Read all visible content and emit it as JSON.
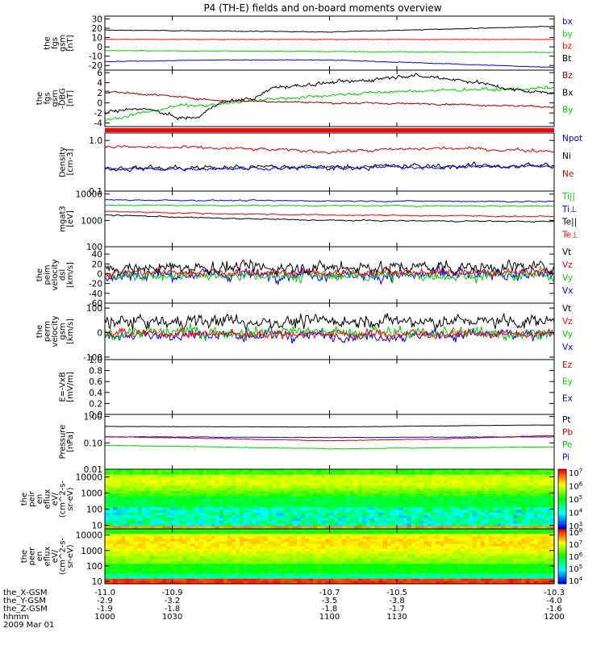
{
  "chart_data": {
    "type": "line",
    "title": "P4 (TH-E) fields and on-board moments overview",
    "panels": [
      {
        "id": "fgs",
        "ylabel": [
          "the",
          "fgs",
          "gsm",
          "[nT]"
        ],
        "ymin": -25,
        "ymax": 33,
        "scale": "linear",
        "ticks": [
          "30",
          "20",
          "10",
          "0",
          "-10",
          "-20"
        ],
        "tick_values": [
          30,
          20,
          10,
          0,
          -10,
          -20
        ],
        "series": [
          {
            "name": "Bt",
            "color": "#000000",
            "noise": 0.3,
            "knots": [
              [
                1000,
                18
              ],
              [
                1030,
                17
              ],
              [
                1100,
                16
              ],
              [
                1130,
                19
              ],
              [
                1200,
                22
              ]
            ]
          },
          {
            "name": "bz",
            "color": "#ff0000",
            "noise": 0.2,
            "knots": [
              [
                1000,
                8
              ],
              [
                1100,
                8
              ],
              [
                1200,
                8
              ]
            ]
          },
          {
            "name": "by",
            "color": "#00cc00",
            "noise": 0.3,
            "knots": [
              [
                1000,
                -4
              ],
              [
                1100,
                -5
              ],
              [
                1200,
                -6
              ]
            ]
          },
          {
            "name": "bx",
            "color": "#0000ff",
            "noise": 0.3,
            "knots": [
              [
                1000,
                -16
              ],
              [
                1030,
                -14
              ],
              [
                1100,
                -14
              ],
              [
                1130,
                -18
              ],
              [
                1200,
                -22
              ]
            ]
          }
        ]
      },
      {
        "id": "fgs-dbg",
        "ylabel": [
          "the",
          "fgs",
          "gsm",
          "-DBG",
          "[nT]"
        ],
        "ymin": -4.7,
        "ymax": 6.5,
        "scale": "linear",
        "ticks": [
          "6",
          "4",
          "2",
          "0",
          "-2",
          "-4"
        ],
        "tick_values": [
          6,
          4,
          2,
          0,
          -2,
          -4
        ],
        "series": [
          {
            "name": "By",
            "color": "#00cc00",
            "noise": 0.25,
            "knots": [
              [
                1000,
                -3.5
              ],
              [
                1010,
                -2
              ],
              [
                1020,
                -0.5
              ],
              [
                1030,
                -0.3
              ],
              [
                1040,
                0.5
              ],
              [
                1050,
                1
              ],
              [
                1100,
                1.5
              ],
              [
                1110,
                2
              ],
              [
                1130,
                2.5
              ],
              [
                1150,
                2.7
              ],
              [
                1200,
                3
              ]
            ]
          },
          {
            "name": "Bx",
            "color": "#000000",
            "noise": 0.3,
            "knots": [
              [
                1000,
                -2
              ],
              [
                1010,
                -1
              ],
              [
                1020,
                -3
              ],
              [
                1025,
                -3
              ],
              [
                1030,
                0
              ],
              [
                1040,
                1
              ],
              [
                1045,
                3
              ],
              [
                1100,
                4
              ],
              [
                1110,
                4.5
              ],
              [
                1120,
                5.5
              ],
              [
                1130,
                5
              ],
              [
                1140,
                4
              ],
              [
                1150,
                2.5
              ],
              [
                1200,
                2
              ]
            ]
          },
          {
            "name": "Bz",
            "color": "#990000",
            "noise": 0.15,
            "knots": [
              [
                1000,
                2.3
              ],
              [
                1015,
                1.5
              ],
              [
                1030,
                0.5
              ],
              [
                1050,
                0.2
              ],
              [
                1100,
                0
              ],
              [
                1130,
                -0.2
              ],
              [
                1200,
                -0.8
              ]
            ]
          }
        ]
      },
      {
        "id": "density",
        "ylabel": [
          "Density",
          "[cm-3]"
        ],
        "ymin": 0.1,
        "ymax": 1.4,
        "scale": "log",
        "ticks": [
          "1.0",
          "0.1"
        ],
        "tick_values": [
          1.0,
          0.1
        ],
        "series": [
          {
            "name": "Ne",
            "color": "#cc0000",
            "noise": 0.03,
            "knots": [
              [
                1000,
                0.75
              ],
              [
                1030,
                0.7
              ],
              [
                1100,
                0.6
              ],
              [
                1130,
                0.7
              ],
              [
                1200,
                0.62
              ]
            ]
          },
          {
            "name": "Ni",
            "color": "#000000",
            "noise": 0.05,
            "knots": [
              [
                1000,
                0.28
              ],
              [
                1100,
                0.3
              ],
              [
                1200,
                0.32
              ]
            ]
          },
          {
            "name": "Npot",
            "color": "#0000ff",
            "noise": 0.03,
            "knots": [
              [
                1000,
                0.27
              ],
              [
                1100,
                0.29
              ],
              [
                1200,
                0.31
              ]
            ]
          }
        ]
      },
      {
        "id": "temperature",
        "ylabel": [
          "mgat3",
          "[eV]"
        ],
        "ymin": 100,
        "ymax": 13000,
        "scale": "log",
        "ticks": [
          "10000",
          "1000",
          "100"
        ],
        "tick_values": [
          10000,
          1000,
          100
        ],
        "series": [
          {
            "name": "Te⊥",
            "color": "#ff0000",
            "noise": 0.02,
            "knots": [
              [
                1000,
                2200
              ],
              [
                1030,
                1800
              ],
              [
                1100,
                1600
              ],
              [
                1200,
                1400
              ]
            ]
          },
          {
            "name": "Te||",
            "color": "#000000",
            "noise": 0.02,
            "knots": [
              [
                1000,
                1600
              ],
              [
                1030,
                1200
              ],
              [
                1100,
                1000
              ],
              [
                1200,
                900
              ]
            ]
          },
          {
            "name": "Ti⊥",
            "color": "#0000ff",
            "noise": 0.02,
            "knots": [
              [
                1000,
                6000
              ],
              [
                1100,
                5500
              ],
              [
                1200,
                5200
              ]
            ]
          },
          {
            "name": "Ti||",
            "color": "#00cc00",
            "noise": 0.02,
            "knots": [
              [
                1000,
                3800
              ],
              [
                1100,
                3600
              ],
              [
                1200,
                3500
              ]
            ]
          }
        ]
      },
      {
        "id": "peim-velocity",
        "ylabel": [
          "the",
          "peim",
          "velocity",
          "dsl",
          "[km/s]"
        ],
        "ymin": -60,
        "ymax": 55,
        "scale": "linear",
        "ticks": [
          "40",
          "20",
          "0",
          "-20",
          "-40",
          "-60"
        ],
        "tick_values": [
          40,
          20,
          0,
          -20,
          -40,
          -60
        ],
        "series": [
          {
            "name": "Vx",
            "color": "#0000ff",
            "noise": 10,
            "knots": [
              [
                1000,
                -2
              ],
              [
                1200,
                -2
              ]
            ]
          },
          {
            "name": "Vy",
            "color": "#00cc00",
            "noise": 9,
            "knots": [
              [
                1000,
                -4
              ],
              [
                1200,
                -4
              ]
            ]
          },
          {
            "name": "Vz",
            "color": "#ff0000",
            "noise": 6,
            "knots": [
              [
                1000,
                2
              ],
              [
                1200,
                2
              ]
            ]
          },
          {
            "name": "Vt",
            "color": "#000000",
            "noise": 10,
            "knots": [
              [
                1000,
                12
              ],
              [
                1200,
                14
              ]
            ]
          }
        ]
      },
      {
        "id": "perm-velocity",
        "ylabel": [
          "the",
          "perm",
          "velocity",
          "gsm",
          "[km/s]"
        ],
        "ymin": -110,
        "ymax": 120,
        "scale": "linear",
        "ticks": [
          "100",
          "0",
          "-100"
        ],
        "tick_values": [
          100,
          0,
          -100
        ],
        "series": [
          {
            "name": "Vx",
            "color": "#0000ff",
            "noise": 18,
            "knots": [
              [
                1000,
                -10
              ],
              [
                1200,
                -10
              ]
            ]
          },
          {
            "name": "Vy",
            "color": "#00cc00",
            "noise": 20,
            "knots": [
              [
                1000,
                0
              ],
              [
                1200,
                0
              ]
            ]
          },
          {
            "name": "Vz",
            "color": "#ff0000",
            "noise": 14,
            "knots": [
              [
                1000,
                -5
              ],
              [
                1200,
                -5
              ]
            ]
          },
          {
            "name": "Vt",
            "color": "#000000",
            "noise": 22,
            "knots": [
              [
                1000,
                45
              ],
              [
                1200,
                45
              ]
            ]
          }
        ]
      },
      {
        "id": "exb",
        "ylabel": [
          "E=-VxB",
          "[mV/m]"
        ],
        "ymin": 0,
        "ymax": 1,
        "scale": "linear",
        "ticks": [
          "1.0",
          "0.8",
          "0.6",
          "0.4",
          "0.2",
          "0.0"
        ],
        "tick_values": [
          1.0,
          0.8,
          0.6,
          0.4,
          0.2,
          0.0
        ],
        "series": [
          {
            "name": "Ex",
            "color": "#0000aa",
            "knots": []
          },
          {
            "name": "Ey",
            "color": "#00cc00",
            "knots": []
          },
          {
            "name": "Ez",
            "color": "#cc0000",
            "knots": []
          }
        ]
      },
      {
        "id": "pressure",
        "ylabel": [
          "Pressure",
          "[nPa]"
        ],
        "ymin": 0.01,
        "ymax": 1.2,
        "scale": "log",
        "ticks": [
          "1.00",
          "0.10",
          "0.01"
        ],
        "tick_values": [
          1.0,
          0.1,
          0.01
        ],
        "series": [
          {
            "name": "Pi",
            "color": "#0000ff",
            "noise": 0.01,
            "knots": [
              [
                1000,
                0.17
              ],
              [
                1100,
                0.16
              ],
              [
                1200,
                0.17
              ]
            ]
          },
          {
            "name": "Pe",
            "color": "#00cc00",
            "noise": 0.01,
            "knots": [
              [
                1000,
                0.08
              ],
              [
                1100,
                0.06
              ],
              [
                1200,
                0.07
              ]
            ]
          },
          {
            "name": "Pb",
            "color": "#cc0000",
            "noise": 0.01,
            "knots": [
              [
                1000,
                0.17
              ],
              [
                1100,
                0.12
              ],
              [
                1130,
                0.14
              ],
              [
                1200,
                0.19
              ]
            ]
          },
          {
            "name": "Pt",
            "color": "#000000",
            "noise": 0.005,
            "knots": [
              [
                1000,
                0.42
              ],
              [
                1100,
                0.4
              ],
              [
                1200,
                0.48
              ]
            ]
          }
        ]
      },
      {
        "id": "peir-spectrogram",
        "type": "heatmap",
        "ylabel": [
          "the",
          "peir",
          "en",
          "eflux",
          "eV/",
          "(cm^2-s-",
          "sr-eV)"
        ],
        "ymin": 6,
        "ymax": 30000,
        "scale": "log",
        "ticks": [
          "10000",
          "1000",
          "100",
          "10"
        ],
        "tick_values": [
          10000,
          1000,
          100,
          10
        ],
        "colorbar": {
          "min_exp": 3,
          "max_exp": 7,
          "labels": [
            "10^7",
            "10^6",
            "10^5",
            "10^4",
            "10^3"
          ]
        }
      },
      {
        "id": "peer-spectrogram",
        "type": "heatmap",
        "ylabel": [
          "the",
          "peer",
          "en",
          "eflux",
          "eV/",
          "(cm^2-s-",
          "sr-eV)"
        ],
        "ymin": 7,
        "ymax": 25000,
        "scale": "log",
        "ticks": [
          "10000",
          "1000",
          "100",
          "10"
        ],
        "tick_values": [
          10000,
          1000,
          100,
          10
        ],
        "colorbar": {
          "min_exp": 4,
          "max_exp": 8,
          "labels": [
            "10^8",
            "10^7",
            "10^6",
            "10^5",
            "10^4"
          ]
        }
      }
    ],
    "x_axis": {
      "xmin": 1000,
      "xmax": 1200,
      "tick_values": [
        1000,
        1030,
        1100,
        1130,
        1200
      ],
      "rows": [
        {
          "label": "the_X-GSM",
          "values": [
            "-11.0",
            "-10.9",
            "-10.7",
            "-10.5",
            "-10.3"
          ]
        },
        {
          "label": "the_Y-GSM",
          "values": [
            "-2.9",
            "-3.2",
            "-3.5",
            "-3.8",
            "-4.0"
          ]
        },
        {
          "label": "the_Z-GSM",
          "values": [
            "-1.9",
            "-1.8",
            "-1.8",
            "-1.7",
            "-1.6"
          ]
        },
        {
          "label": "hhmm",
          "values": [
            "1000",
            "1030",
            "1100",
            "1130",
            "1200"
          ]
        }
      ],
      "date": "2009 Mar 01"
    }
  }
}
